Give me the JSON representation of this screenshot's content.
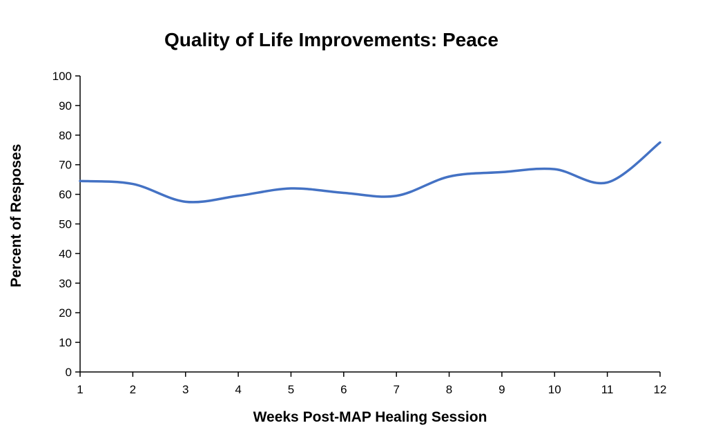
{
  "chart_data": {
    "type": "line",
    "title": "Quality of Life Improvements: Peace",
    "xlabel": "Weeks Post-MAP Healing Session",
    "ylabel": "Percent of Resposes",
    "x": [
      1,
      2,
      3,
      4,
      5,
      6,
      7,
      8,
      9,
      10,
      11,
      12
    ],
    "ylim": [
      0,
      100
    ],
    "yticks": [
      0,
      10,
      20,
      30,
      40,
      50,
      60,
      70,
      80,
      90,
      100
    ],
    "grid": false,
    "legend": "none",
    "series": [
      {
        "color": "#4472C4",
        "smooth": true,
        "values": [
          64.5,
          63.5,
          57.5,
          59.5,
          62,
          60.5,
          59.5,
          66,
          67.5,
          68.5,
          64,
          77.5
        ]
      }
    ]
  }
}
